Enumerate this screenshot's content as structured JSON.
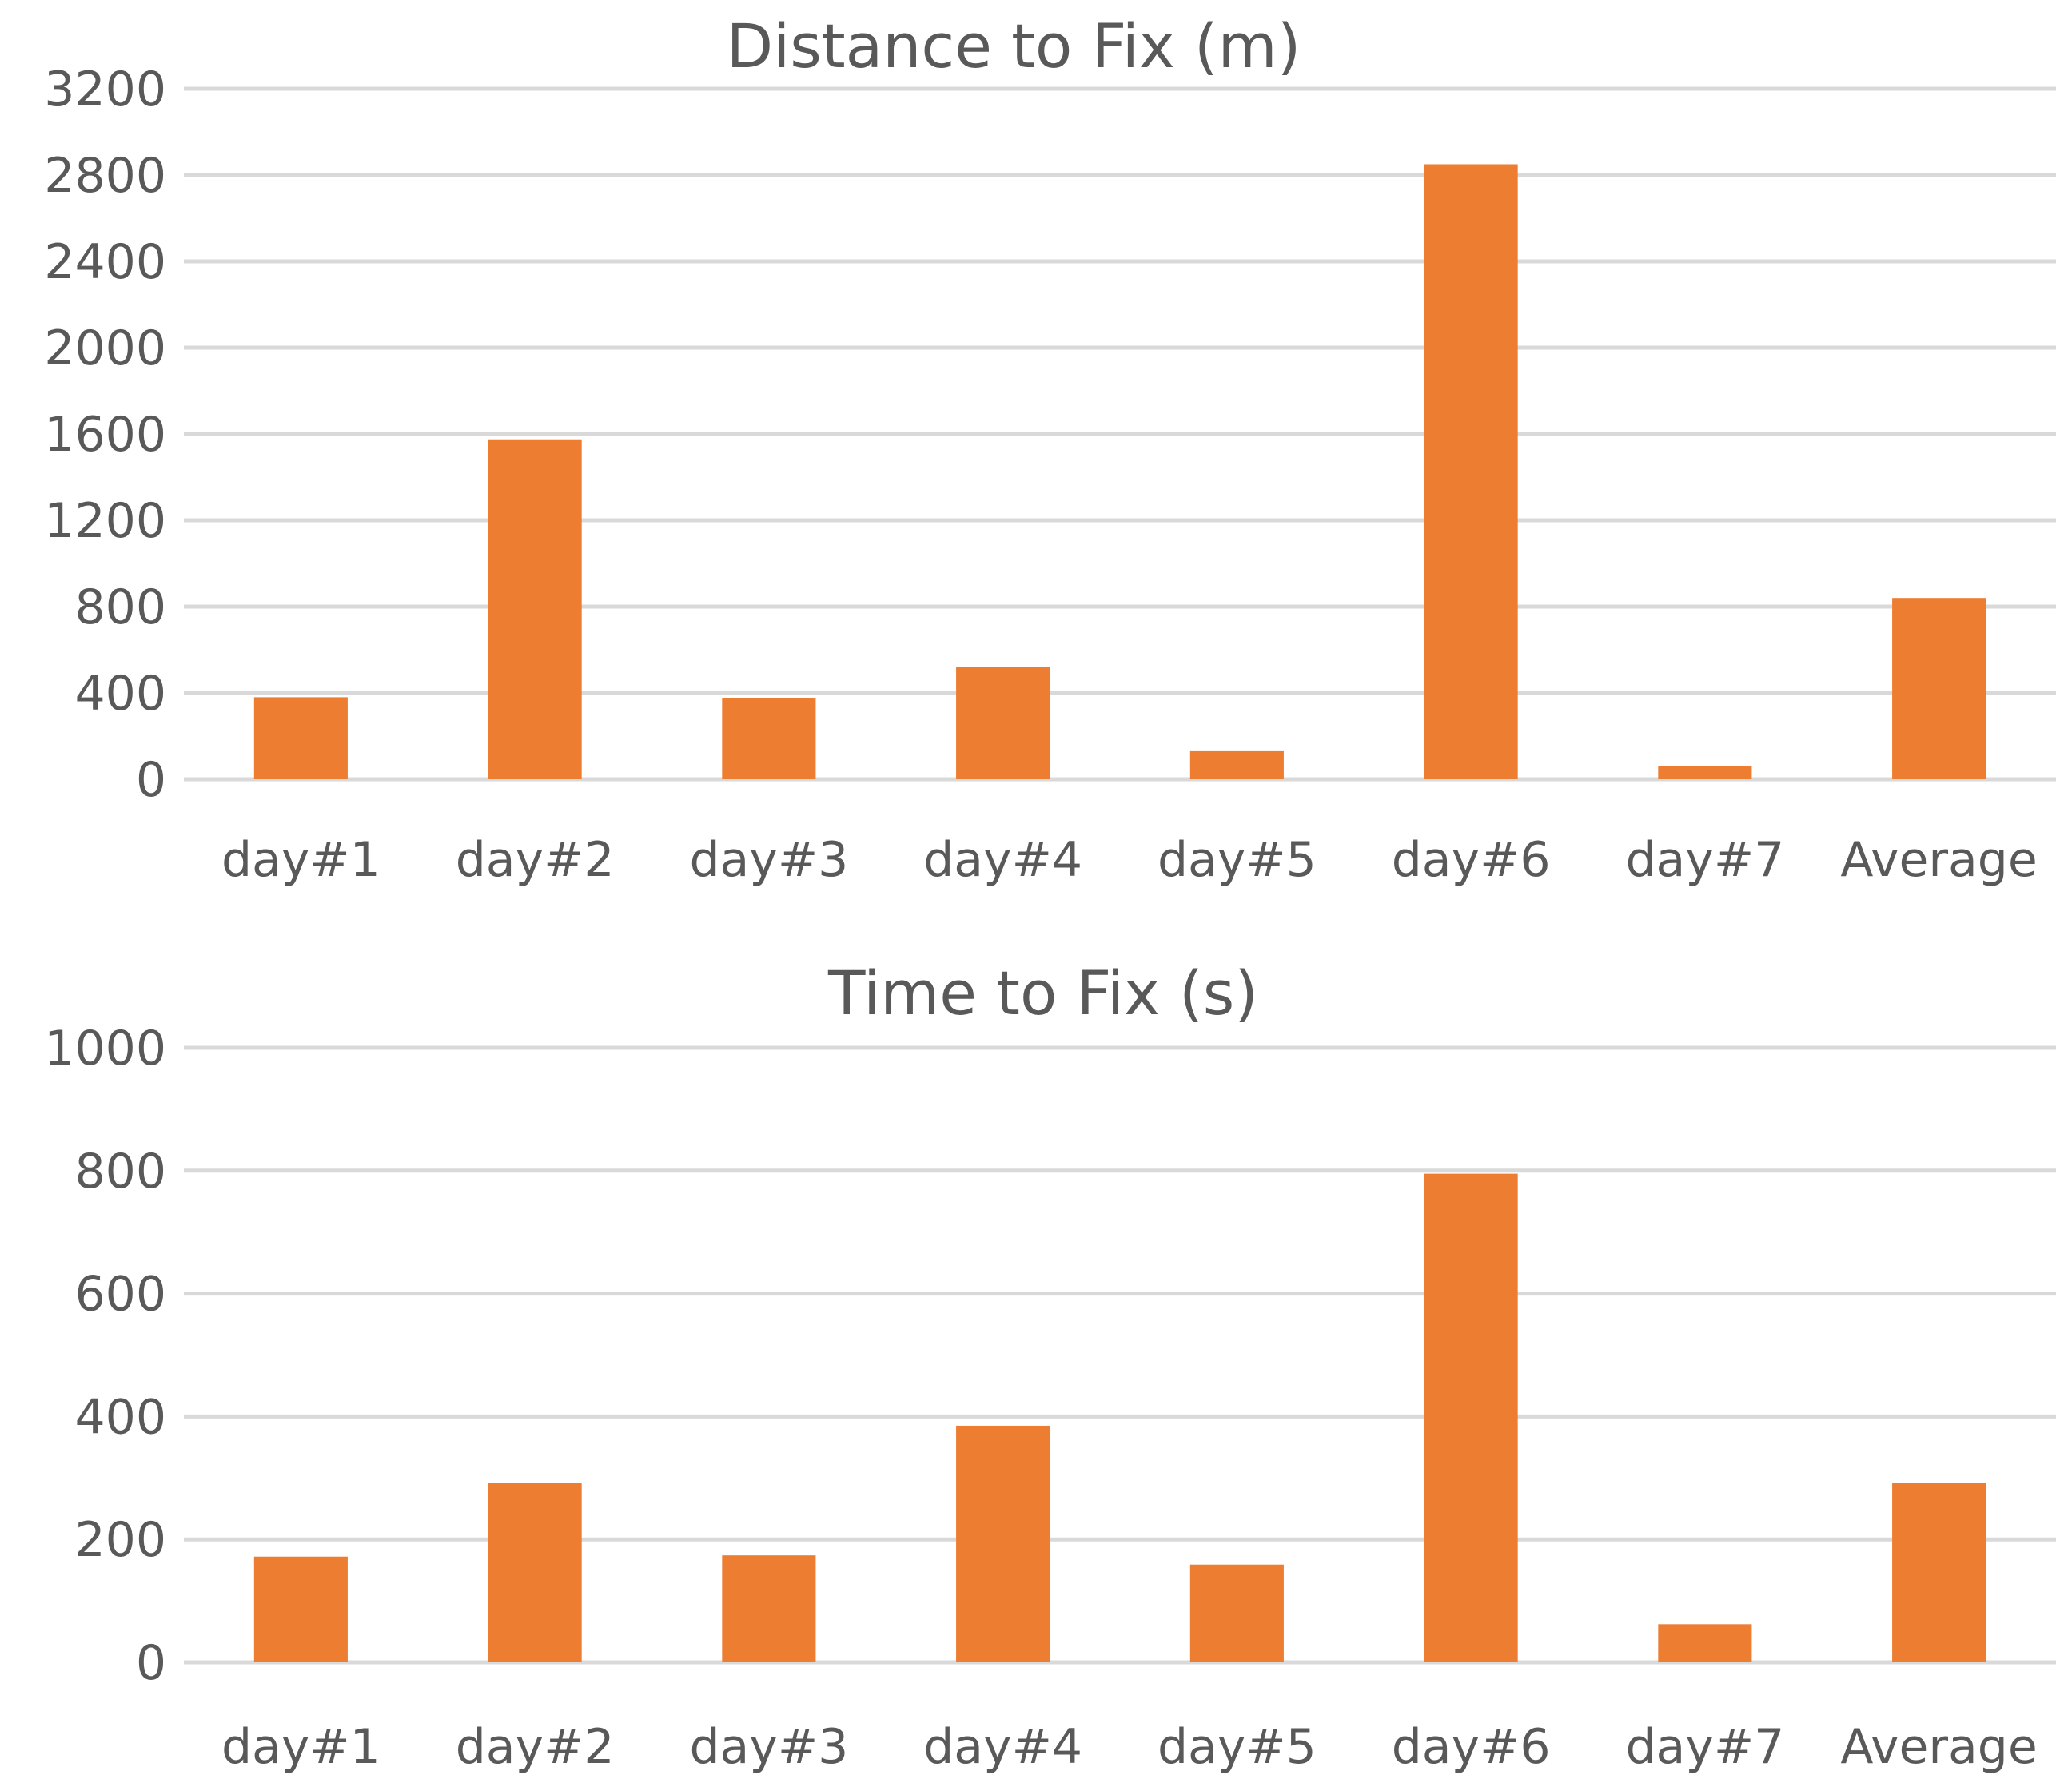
{
  "chart_data": [
    {
      "type": "bar",
      "title": "Distance to Fix (m)",
      "xlabel": "",
      "ylabel": "",
      "categories": [
        "day#1",
        "day#2",
        "day#3",
        "day#4",
        "day#5",
        "day#6",
        "day#7",
        "Average"
      ],
      "series": [
        {
          "values": [
            380,
            1575,
            375,
            520,
            130,
            2850,
            60,
            840
          ]
        }
      ],
      "ylim": [
        0,
        3200
      ],
      "yticks": [
        0,
        400,
        800,
        1200,
        1600,
        2000,
        2400,
        2800,
        3200
      ],
      "grid": true,
      "legend": "none",
      "bar_color": "#ED7D31"
    },
    {
      "type": "bar",
      "title": "Time to Fix (s)",
      "xlabel": "",
      "ylabel": "",
      "categories": [
        "day#1",
        "day#2",
        "day#3",
        "day#4",
        "day#5",
        "day#6",
        "day#7",
        "Average"
      ],
      "series": [
        {
          "values": [
            172,
            292,
            174,
            385,
            159,
            795,
            62,
            292
          ]
        }
      ],
      "ylim": [
        0,
        1000
      ],
      "yticks": [
        0,
        200,
        400,
        600,
        800,
        1000
      ],
      "grid": true,
      "legend": "none",
      "bar_color": "#ED7D31"
    }
  ]
}
